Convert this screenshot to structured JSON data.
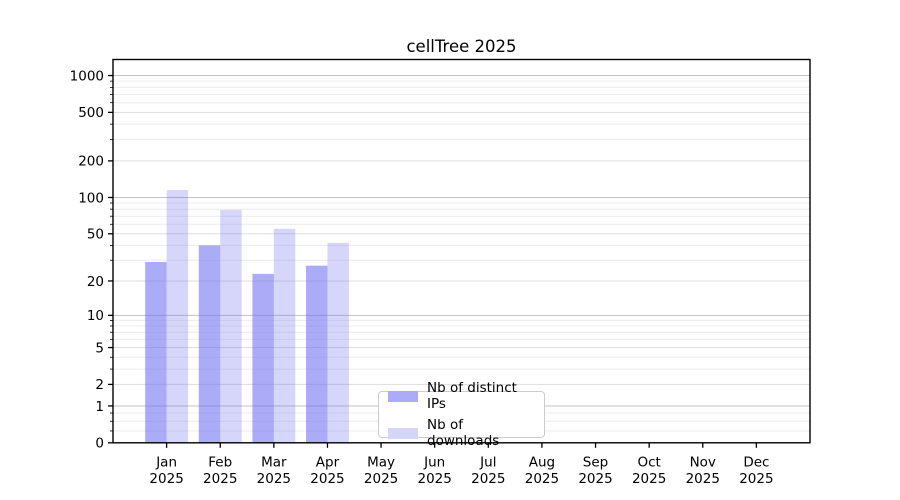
{
  "title": "cellTree 2025",
  "chart_data": {
    "type": "bar",
    "title": "cellTree 2025",
    "categories": [
      "Jan 2025",
      "Feb 2025",
      "Mar 2025",
      "Apr 2025",
      "May 2025",
      "Jun 2025",
      "Jul 2025",
      "Aug 2025",
      "Sep 2025",
      "Oct 2025",
      "Nov 2025",
      "Dec 2025"
    ],
    "series": [
      {
        "name": "Nb of distinct IPs",
        "color": "#ababf9",
        "fill": "rgba(102,102,242,0.55)",
        "values": [
          29,
          40,
          23,
          27,
          null,
          null,
          null,
          null,
          null,
          null,
          null,
          null
        ]
      },
      {
        "name": "Nb of downloads",
        "color": "#d6d6fa",
        "fill": "rgba(102,102,242,0.27)",
        "values": [
          115,
          79,
          55,
          42,
          null,
          null,
          null,
          null,
          null,
          null,
          null,
          null
        ]
      }
    ],
    "yscale": "log(1+y)",
    "yticks": [
      0,
      1,
      2,
      5,
      10,
      20,
      50,
      100,
      200,
      500,
      1000
    ],
    "ylim": [
      0,
      1345
    ],
    "xlabel": "",
    "ylabel": "",
    "grid": "horizontal major+minor",
    "legend_position": "bottom-center-inside"
  },
  "axis": {
    "spine_color": "#000000",
    "tick_color": "#000000",
    "decade_grid_color": "#c3c3c3",
    "mid_grid_color": "#dddddd",
    "minor_grid_color": "#ececec"
  }
}
